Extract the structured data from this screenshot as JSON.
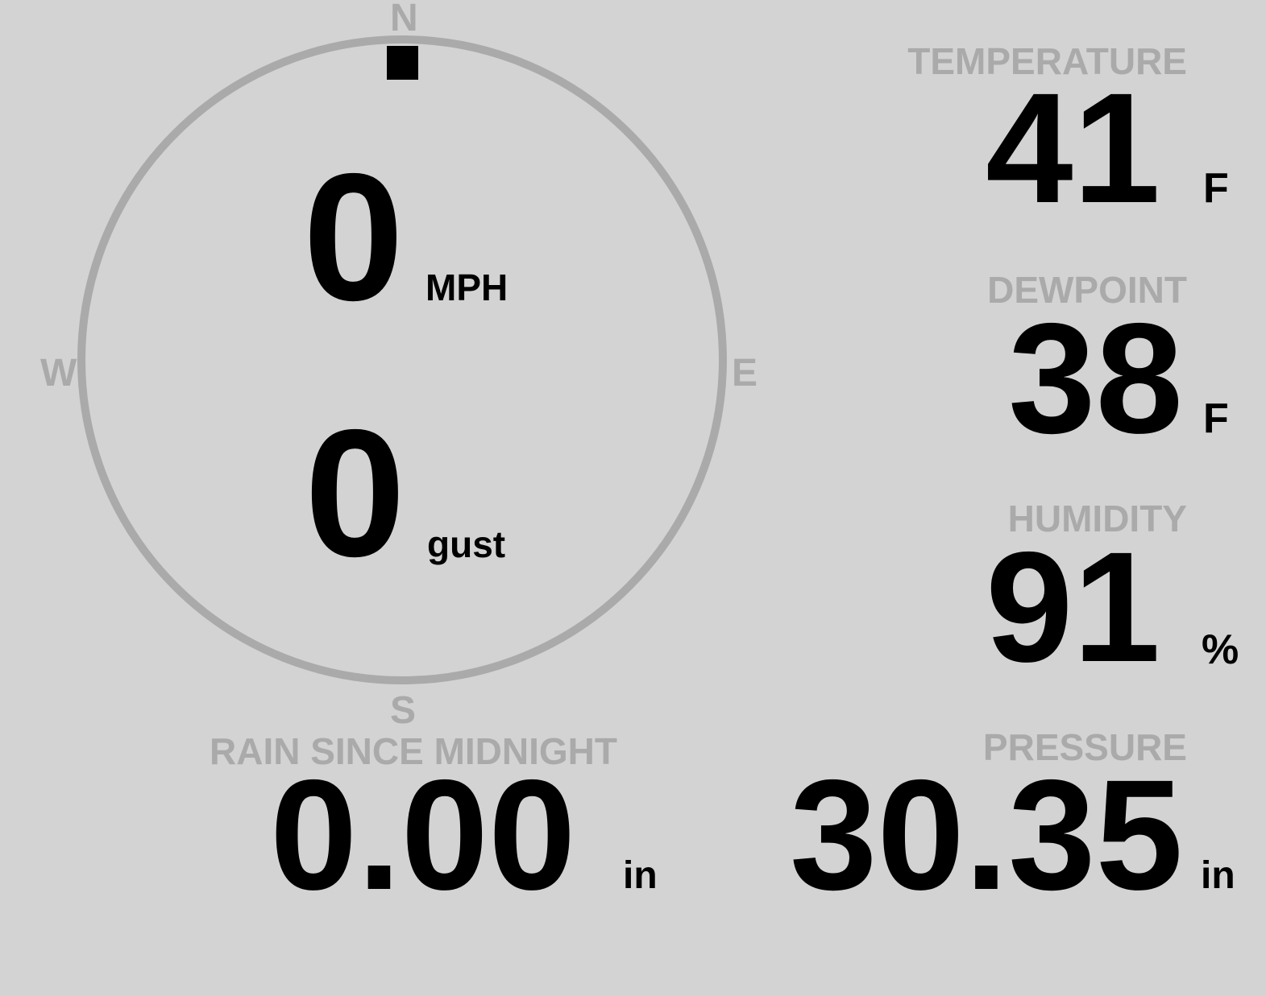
{
  "wind": {
    "speed": "0",
    "speed_unit": "MPH",
    "gust": "0",
    "gust_label": "gust",
    "direction_deg": 0,
    "compass": {
      "n": "N",
      "e": "E",
      "s": "S",
      "w": "W"
    }
  },
  "temperature": {
    "label": "TEMPERATURE",
    "value": "41",
    "unit": "F"
  },
  "dewpoint": {
    "label": "DEWPOINT",
    "value": "38",
    "unit": "F"
  },
  "humidity": {
    "label": "HUMIDITY",
    "value": "91",
    "unit": "%"
  },
  "rain": {
    "label": "RAIN SINCE MIDNIGHT",
    "value": "0.00",
    "unit": "in"
  },
  "pressure": {
    "label": "PRESSURE",
    "value": "30.35",
    "unit": "in"
  },
  "colors": {
    "background": "#d3d3d3",
    "label": "#aaaaaa",
    "value": "#000000",
    "dial": "#aaaaaa",
    "marker": "#000000"
  }
}
